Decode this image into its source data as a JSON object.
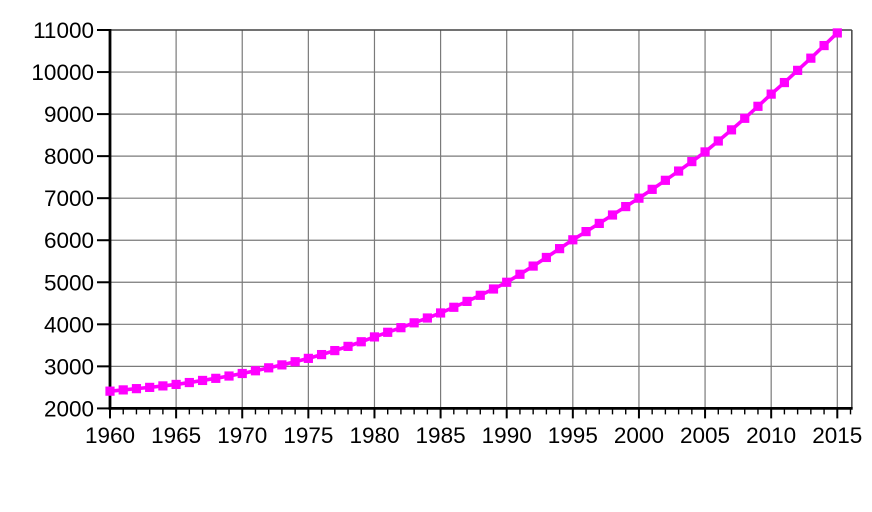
{
  "chart_data": {
    "type": "line",
    "title": "",
    "xlabel": "",
    "ylabel": "",
    "legend": "none",
    "grid": true,
    "x": [
      1960,
      1961,
      1962,
      1963,
      1964,
      1965,
      1966,
      1967,
      1968,
      1969,
      1970,
      1971,
      1972,
      1973,
      1974,
      1975,
      1976,
      1977,
      1978,
      1979,
      1980,
      1981,
      1982,
      1983,
      1984,
      1985,
      1986,
      1987,
      1988,
      1989,
      1990,
      1991,
      1992,
      1993,
      1994,
      1995,
      1996,
      1997,
      1998,
      1999,
      2000,
      2001,
      2002,
      2003,
      2004,
      2005,
      2006,
      2007,
      2008,
      2009,
      2010,
      2011,
      2012,
      2013,
      2014,
      2015
    ],
    "series": [
      {
        "name": "magenta-square-series",
        "color": "#FF00FF",
        "marker": "square",
        "values": [
          2410,
          2440,
          2470,
          2500,
          2535,
          2570,
          2615,
          2665,
          2715,
          2770,
          2830,
          2895,
          2965,
          3035,
          3110,
          3190,
          3280,
          3375,
          3475,
          3585,
          3700,
          3810,
          3920,
          4035,
          4150,
          4270,
          4405,
          4545,
          4690,
          4840,
          5000,
          5190,
          5385,
          5590,
          5800,
          6010,
          6205,
          6400,
          6600,
          6800,
          7000,
          7210,
          7425,
          7645,
          7870,
          8100,
          8360,
          8625,
          8900,
          9185,
          9475,
          9750,
          10040,
          10330,
          10630,
          10930
        ]
      }
    ],
    "xlim": [
      1960,
      2016.1
    ],
    "ylim": [
      2000,
      11000
    ],
    "axis_end_year": 2016.1,
    "ytick_values": [
      2000,
      3000,
      4000,
      5000,
      6000,
      7000,
      8000,
      9000,
      10000,
      11000
    ],
    "ytick_labels": [
      "2000",
      "3000",
      "4000",
      "5000",
      "6000",
      "7000",
      "8000",
      "9000",
      "10000",
      "11000"
    ],
    "xtick_major": [
      1960,
      1965,
      1970,
      1975,
      1980,
      1985,
      1990,
      1995,
      2000,
      2005,
      2010,
      2015
    ],
    "xtick_labels": [
      "1960",
      "1965",
      "1970",
      "1975",
      "1980",
      "1985",
      "1990",
      "1995",
      "2000",
      "2005",
      "2010",
      "2015"
    ],
    "xtick_minor_step": 1,
    "legend_position": "none",
    "colors": {
      "line": "#FF00FF",
      "grid": "#7a7a7a",
      "frame": "#444444",
      "axis": "#000000",
      "label": "#000000",
      "background": "#ffffff"
    }
  }
}
